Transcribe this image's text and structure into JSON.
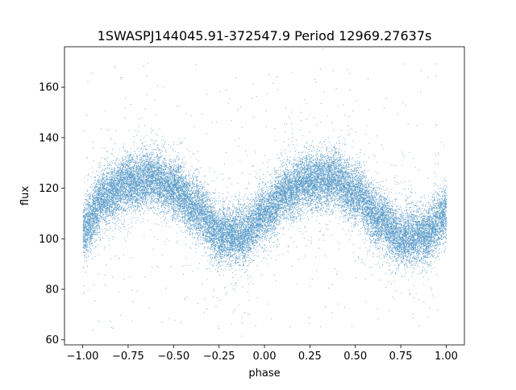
{
  "chart_data": {
    "type": "scatter",
    "title": "1SWASPJ144045.91-372547.9 Period 12969.27637s",
    "xlabel": "phase",
    "ylabel": "flux",
    "xlim": [
      -1.1,
      1.1
    ],
    "ylim": [
      58,
      176
    ],
    "xticks": [
      -1.0,
      -0.75,
      -0.5,
      -0.25,
      0.0,
      0.25,
      0.5,
      0.75,
      1.0
    ],
    "xtick_labels": [
      "−1.00",
      "−0.75",
      "−0.50",
      "−0.25",
      "0.00",
      "0.25",
      "0.50",
      "0.75",
      "1.00"
    ],
    "yticks": [
      60,
      80,
      100,
      120,
      140,
      160
    ],
    "ytick_labels": [
      "60",
      "80",
      "100",
      "120",
      "140",
      "160"
    ],
    "grid": false,
    "legend": "none",
    "series": [
      {
        "color": "#1f77b4",
        "marker": "point",
        "description_shape": "phase-folded light curve, repeating twice over phase -1 to 1",
        "curve_samples": {
          "phase": [
            -1.0,
            -0.875,
            -0.75,
            -0.625,
            -0.5,
            -0.375,
            -0.25,
            -0.125,
            0.0,
            0.125,
            0.25,
            0.375,
            0.5,
            0.625,
            0.75,
            0.875,
            1.0
          ],
          "flux": [
            104,
            117,
            122,
            124,
            120,
            112,
            102,
            101,
            110,
            119,
            123,
            124,
            118,
            108,
            101,
            101,
            110
          ]
        },
        "scatter_sigma": 5.5,
        "outlier_range": [
          64,
          170
        ],
        "n_points": 26000
      }
    ]
  }
}
